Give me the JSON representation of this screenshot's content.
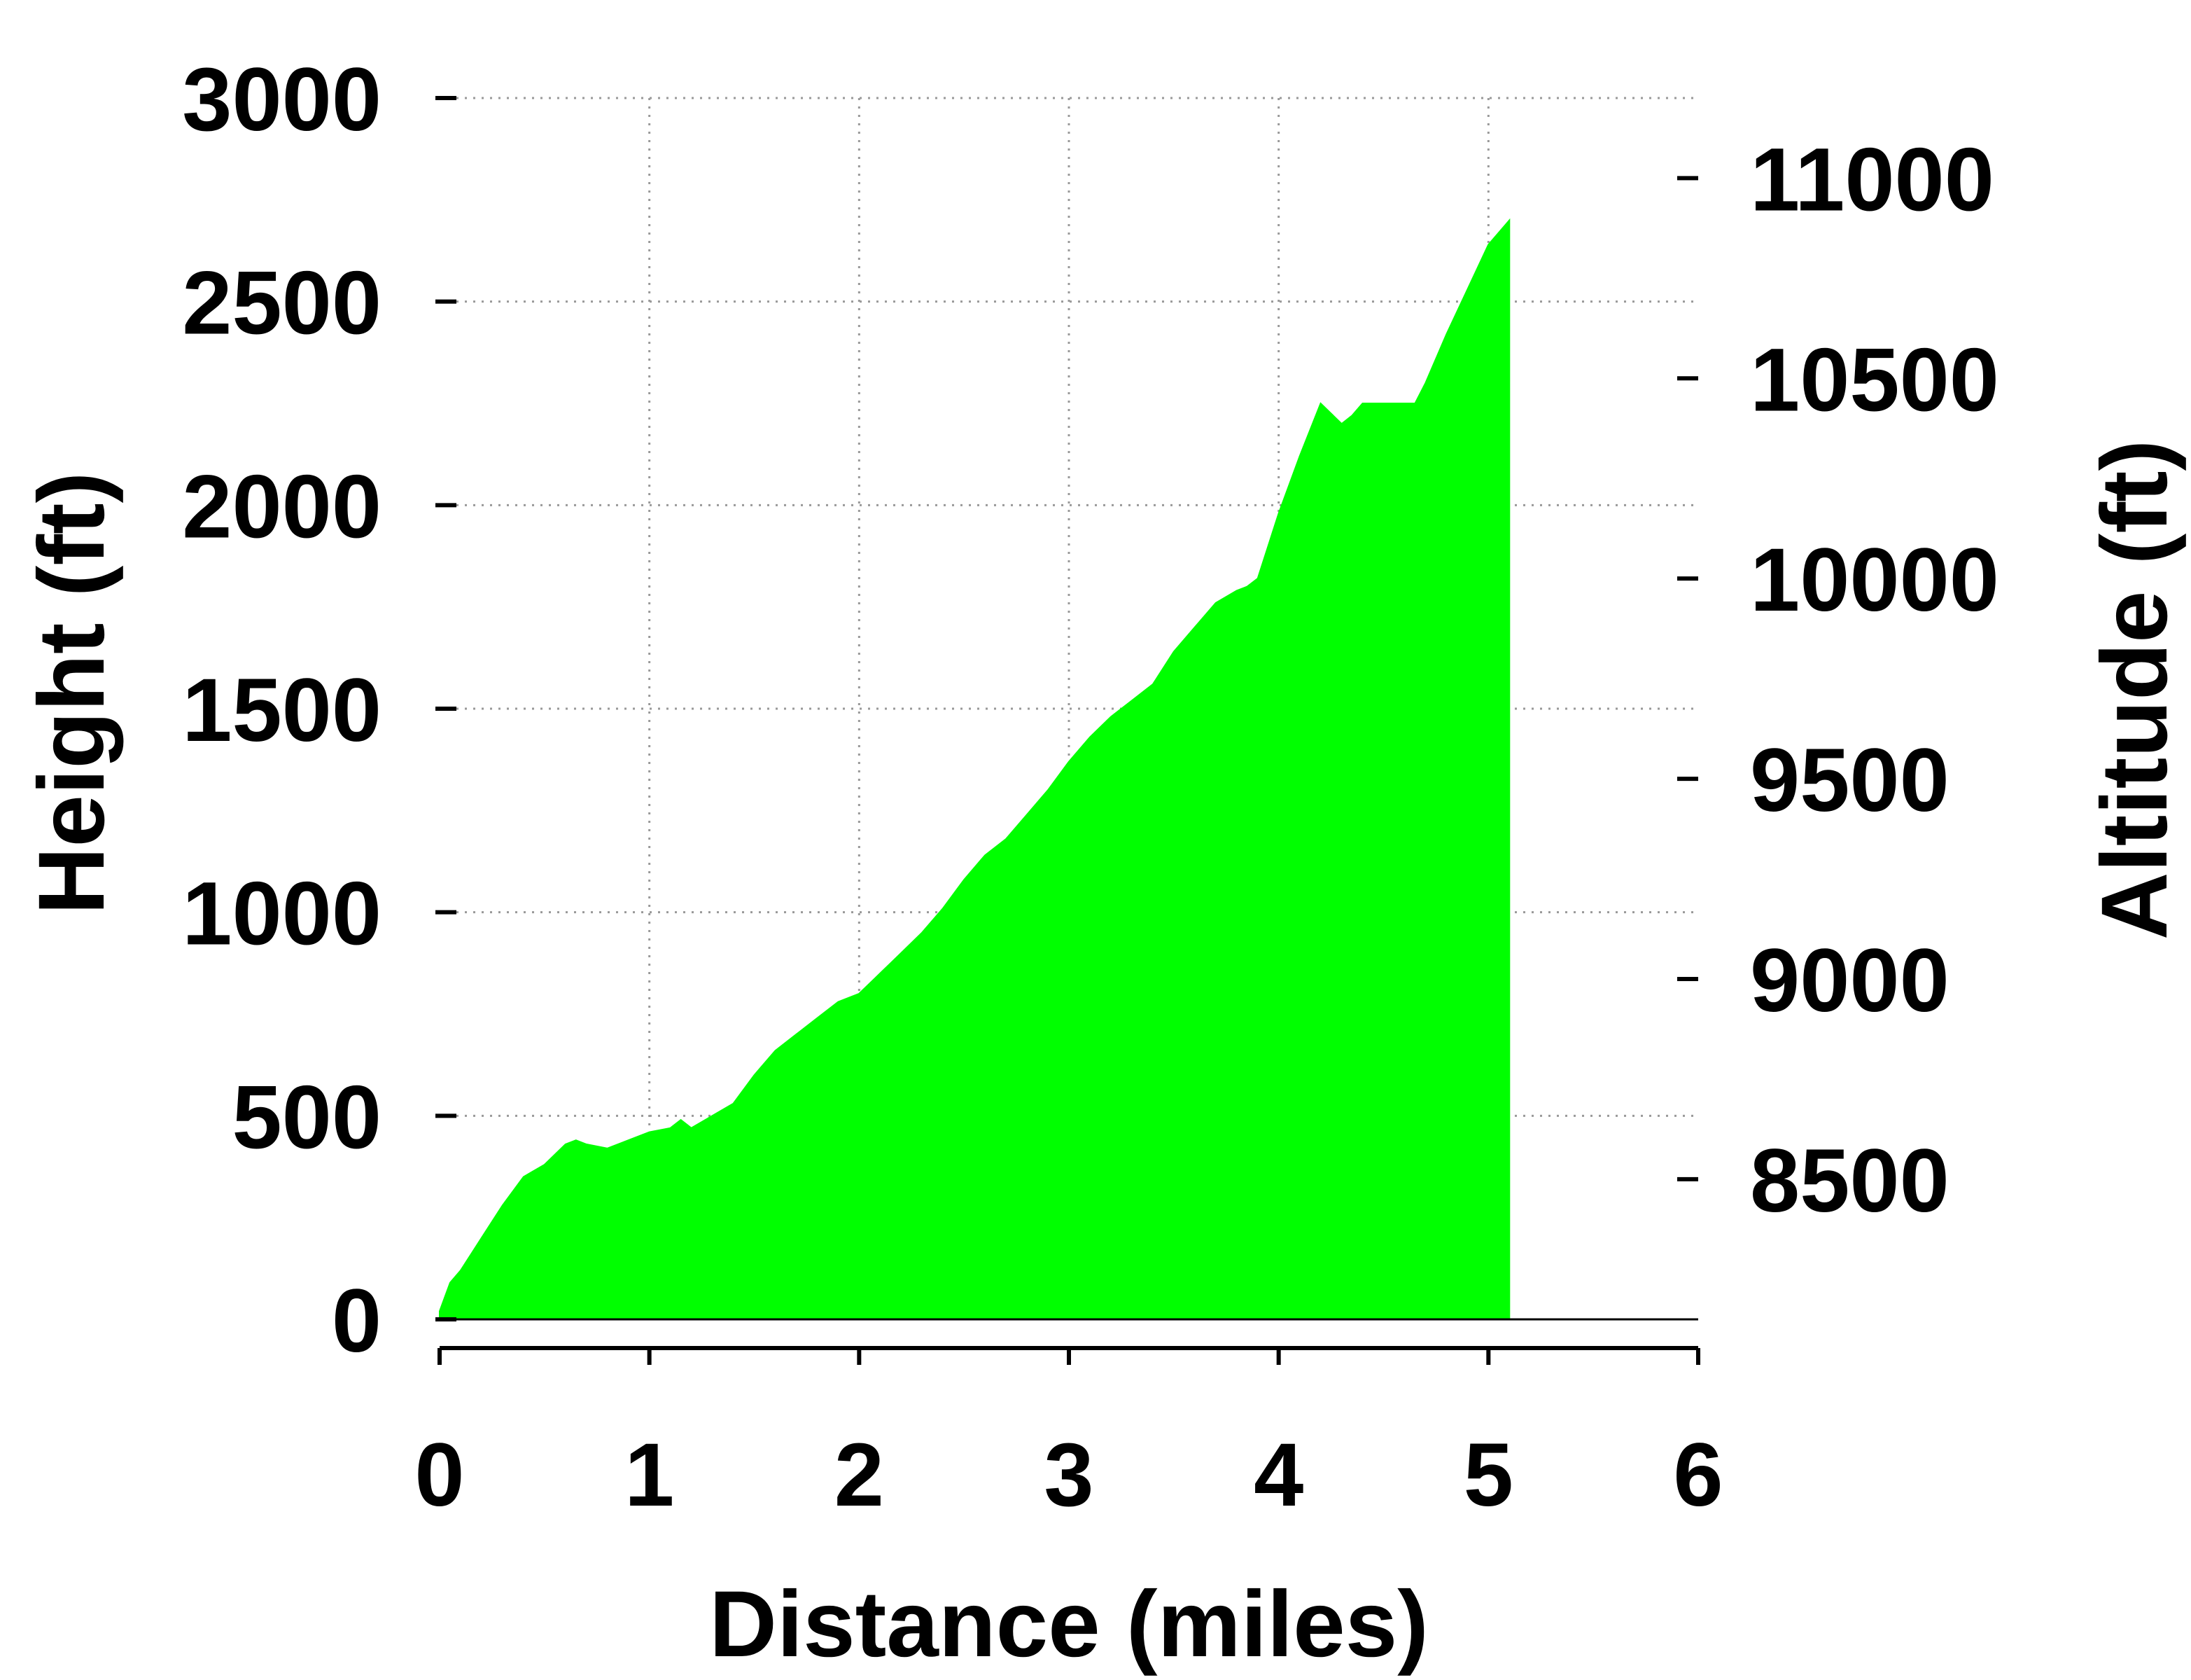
{
  "chart_data": {
    "type": "area",
    "xlabel": "Distance (miles)",
    "ylabel": "Height (ft)",
    "y2label": "Altitude (ft)",
    "xlim": [
      0,
      6
    ],
    "ylim": [
      0,
      3000
    ],
    "y2lim": [
      8150,
      11200
    ],
    "x_ticks": [
      "0",
      "1",
      "2",
      "3",
      "4",
      "5",
      "6"
    ],
    "y_ticks": [
      "0",
      "500",
      "1000",
      "1500",
      "2000",
      "2500",
      "3000"
    ],
    "y2_ticks": [
      "8500",
      "9000",
      "9500",
      "10000",
      "10500",
      "11000"
    ],
    "grid": true,
    "fill_color": "#00ff00",
    "series": [
      {
        "x": [
          0.0,
          0.05,
          0.1,
          0.2,
          0.3,
          0.4,
          0.5,
          0.6,
          0.65,
          0.7,
          0.8,
          0.9,
          1.0,
          1.1,
          1.15,
          1.2,
          1.3,
          1.4,
          1.5,
          1.6,
          1.7,
          1.8,
          1.9,
          2.0,
          2.1,
          2.2,
          2.3,
          2.4,
          2.5,
          2.6,
          2.7,
          2.8,
          2.9,
          3.0,
          3.1,
          3.2,
          3.3,
          3.4,
          3.5,
          3.6,
          3.7,
          3.8,
          3.85,
          3.9,
          4.0,
          4.1,
          4.2,
          4.3,
          4.35,
          4.4,
          4.5,
          4.6,
          4.65,
          4.7,
          4.8,
          4.9,
          5.0,
          5.1
        ],
        "values": [
          20,
          90,
          120,
          200,
          280,
          350,
          380,
          430,
          440,
          430,
          420,
          440,
          460,
          470,
          490,
          470,
          500,
          530,
          600,
          660,
          700,
          740,
          780,
          800,
          850,
          900,
          950,
          1010,
          1080,
          1140,
          1180,
          1240,
          1300,
          1370,
          1430,
          1480,
          1520,
          1560,
          1640,
          1700,
          1760,
          1790,
          1800,
          1820,
          1980,
          2120,
          2250,
          2200,
          2220,
          2250,
          2250,
          2250,
          2250,
          2300,
          2420,
          2530,
          2640,
          2700
        ]
      }
    ]
  }
}
